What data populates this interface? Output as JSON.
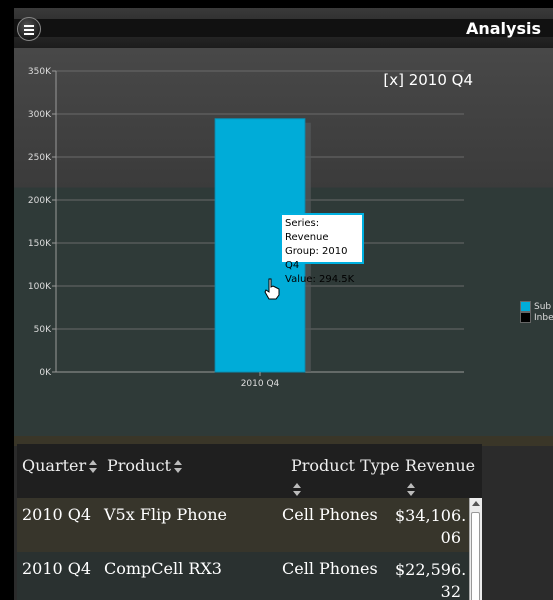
{
  "header": {
    "title": "Analysis",
    "menu_icon": "hamburger-menu-icon"
  },
  "chart_data": {
    "type": "bar",
    "categories": [
      "2010 Q4"
    ],
    "series": [
      {
        "name": "Subtotal",
        "values": [
          294.5
        ]
      }
    ],
    "y_ticks": [
      "0K",
      "50K",
      "100K",
      "150K",
      "200K",
      "250K",
      "300K",
      "350K"
    ],
    "ylim": [
      0,
      350
    ],
    "annotation": "[x] 2010 Q4",
    "grid": true,
    "bar_color": "#00acd8",
    "legend_position": "right",
    "legend": [
      {
        "label": "Sub",
        "color": "#00acd8"
      },
      {
        "label": "Inbe",
        "color": "#000000"
      }
    ]
  },
  "tooltip": {
    "line1": "Series: Revenue",
    "line2": "Group: 2010 Q4",
    "line3": "Value: 294.5K"
  },
  "table": {
    "columns": [
      "Quarter",
      "Product",
      "Product Type",
      "Revenue"
    ],
    "rows": [
      {
        "quarter": "2010 Q4",
        "product": "V5x Flip Phone",
        "type": "Cell Phones",
        "revenue1": "$34,106.",
        "revenue2": "06"
      },
      {
        "quarter": "2010 Q4",
        "product": "CompCell RX3",
        "type": "Cell Phones",
        "revenue1": "$22,596.",
        "revenue2": "32"
      }
    ]
  }
}
